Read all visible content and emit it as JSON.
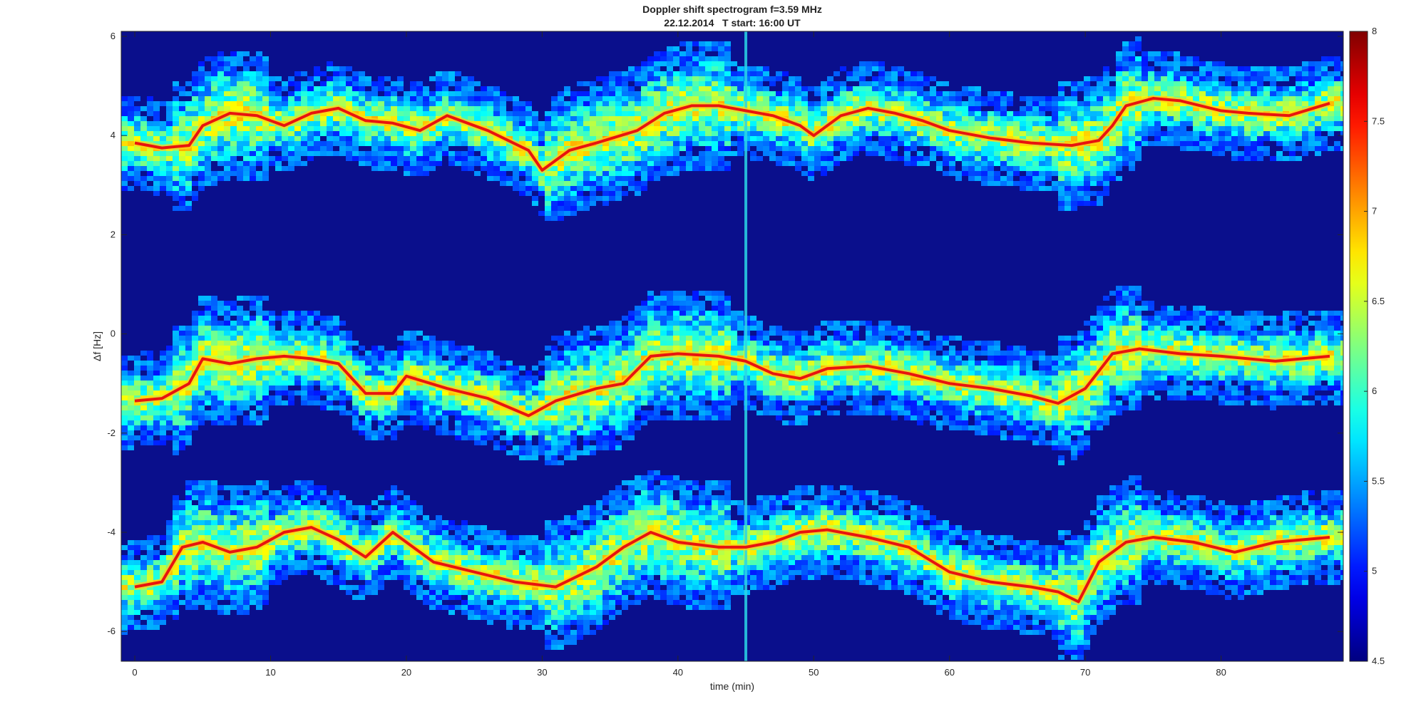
{
  "chart_data": {
    "type": "heatmap",
    "title": "Doppler shift spectrogram f=3.59 MHz",
    "subtitle": "22.12.2014   T start: 16:00 UT",
    "xlabel": "time (min)",
    "ylabel": "Δf [Hz]",
    "xlim": [
      -1,
      89
    ],
    "ylim": [
      -6.6,
      6.1
    ],
    "xticks": [
      0,
      10,
      20,
      30,
      40,
      50,
      60,
      70,
      80
    ],
    "yticks": [
      -6,
      -4,
      -2,
      0,
      2,
      4,
      6
    ],
    "colorbar": {
      "min": 4.5,
      "max": 8,
      "ticks": [
        4.5,
        5,
        5.5,
        6,
        6.5,
        7,
        7.5,
        8
      ],
      "colormap": "jet"
    },
    "background_level": 4.8,
    "traces": [
      {
        "name": "upper",
        "points": [
          [
            0,
            3.85
          ],
          [
            2,
            3.75
          ],
          [
            4,
            3.8
          ],
          [
            5,
            4.2
          ],
          [
            7,
            4.45
          ],
          [
            9,
            4.4
          ],
          [
            11,
            4.2
          ],
          [
            13,
            4.45
          ],
          [
            15,
            4.55
          ],
          [
            17,
            4.3
          ],
          [
            19,
            4.25
          ],
          [
            21,
            4.1
          ],
          [
            23,
            4.4
          ],
          [
            26,
            4.1
          ],
          [
            29,
            3.7
          ],
          [
            30,
            3.3
          ],
          [
            32,
            3.7
          ],
          [
            34,
            3.85
          ],
          [
            37,
            4.1
          ],
          [
            39,
            4.45
          ],
          [
            41,
            4.6
          ],
          [
            43,
            4.6
          ],
          [
            45,
            4.5
          ],
          [
            47,
            4.4
          ],
          [
            49,
            4.2
          ],
          [
            50,
            4.0
          ],
          [
            52,
            4.4
          ],
          [
            54,
            4.55
          ],
          [
            56,
            4.45
          ],
          [
            58,
            4.3
          ],
          [
            60,
            4.1
          ],
          [
            63,
            3.95
          ],
          [
            66,
            3.85
          ],
          [
            69,
            3.8
          ],
          [
            71,
            3.9
          ],
          [
            72,
            4.2
          ],
          [
            73,
            4.6
          ],
          [
            75,
            4.75
          ],
          [
            77,
            4.7
          ],
          [
            80,
            4.5
          ],
          [
            82,
            4.45
          ],
          [
            85,
            4.4
          ],
          [
            88,
            4.65
          ]
        ]
      },
      {
        "name": "middle",
        "points": [
          [
            0,
            -1.35
          ],
          [
            2,
            -1.3
          ],
          [
            4,
            -1.0
          ],
          [
            5,
            -0.5
          ],
          [
            7,
            -0.6
          ],
          [
            9,
            -0.5
          ],
          [
            11,
            -0.45
          ],
          [
            13,
            -0.5
          ],
          [
            15,
            -0.6
          ],
          [
            17,
            -1.2
          ],
          [
            19,
            -1.2
          ],
          [
            20,
            -0.85
          ],
          [
            23,
            -1.1
          ],
          [
            26,
            -1.3
          ],
          [
            29,
            -1.65
          ],
          [
            31,
            -1.35
          ],
          [
            34,
            -1.1
          ],
          [
            36,
            -1.0
          ],
          [
            38,
            -0.45
          ],
          [
            40,
            -0.4
          ],
          [
            43,
            -0.45
          ],
          [
            45,
            -0.55
          ],
          [
            47,
            -0.8
          ],
          [
            49,
            -0.9
          ],
          [
            51,
            -0.7
          ],
          [
            54,
            -0.65
          ],
          [
            57,
            -0.8
          ],
          [
            60,
            -1.0
          ],
          [
            63,
            -1.1
          ],
          [
            66,
            -1.25
          ],
          [
            68,
            -1.4
          ],
          [
            70,
            -1.1
          ],
          [
            72,
            -0.4
          ],
          [
            74,
            -0.3
          ],
          [
            77,
            -0.4
          ],
          [
            80,
            -0.45
          ],
          [
            84,
            -0.55
          ],
          [
            88,
            -0.45
          ]
        ]
      },
      {
        "name": "lower",
        "points": [
          [
            0,
            -5.1
          ],
          [
            2,
            -5.0
          ],
          [
            3.5,
            -4.3
          ],
          [
            5,
            -4.2
          ],
          [
            7,
            -4.4
          ],
          [
            9,
            -4.3
          ],
          [
            11,
            -4.0
          ],
          [
            13,
            -3.9
          ],
          [
            15,
            -4.15
          ],
          [
            17,
            -4.5
          ],
          [
            19,
            -4.0
          ],
          [
            20,
            -4.2
          ],
          [
            22,
            -4.6
          ],
          [
            25,
            -4.8
          ],
          [
            28,
            -5.0
          ],
          [
            31,
            -5.1
          ],
          [
            34,
            -4.7
          ],
          [
            36,
            -4.3
          ],
          [
            38,
            -4.0
          ],
          [
            40,
            -4.2
          ],
          [
            43,
            -4.3
          ],
          [
            45,
            -4.3
          ],
          [
            47,
            -4.2
          ],
          [
            49,
            -4.0
          ],
          [
            51,
            -3.95
          ],
          [
            54,
            -4.1
          ],
          [
            57,
            -4.3
          ],
          [
            60,
            -4.8
          ],
          [
            63,
            -5.0
          ],
          [
            66,
            -5.1
          ],
          [
            68,
            -5.2
          ],
          [
            69.5,
            -5.4
          ],
          [
            71,
            -4.6
          ],
          [
            73,
            -4.2
          ],
          [
            75,
            -4.1
          ],
          [
            78,
            -4.2
          ],
          [
            81,
            -4.4
          ],
          [
            84,
            -4.2
          ],
          [
            88,
            -4.1
          ]
        ]
      }
    ],
    "interference_bands": [
      [
        3,
        10
      ],
      [
        30,
        44
      ],
      [
        68,
        74
      ]
    ],
    "vertical_stripe_x": 45
  }
}
